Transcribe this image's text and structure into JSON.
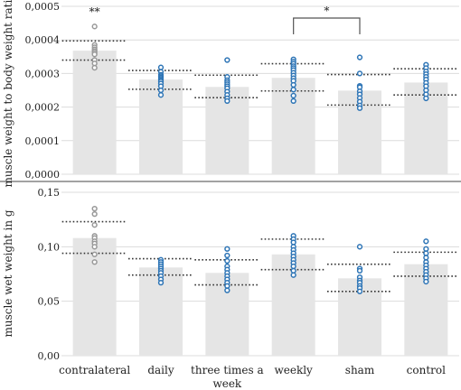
{
  "chart_data": [
    {
      "type": "bar",
      "ylabel": "muscle weight to body weight ratio",
      "ylim": [
        0,
        0.0005
      ],
      "yticks": [
        "0,0000",
        "0,0001",
        "0,0002",
        "0,0003",
        "0,0004",
        "0,0005"
      ],
      "grid": true,
      "categories": [
        "contralateral",
        "daily",
        "three times a week",
        "weekly",
        "sham",
        "control"
      ],
      "values": [
        0.000368,
        0.000282,
        0.00026,
        0.000287,
        0.000249,
        0.000273
      ],
      "sd_upper": [
        0.000397,
        0.000309,
        0.000295,
        0.000329,
        0.000297,
        0.000314
      ],
      "sd_lower": [
        0.00034,
        0.000253,
        0.000228,
        0.000248,
        0.000206,
        0.000236
      ],
      "points": [
        [
          0.00044,
          0.000385,
          0.000378,
          0.000372,
          0.000367,
          0.000362,
          0.000357,
          0.00034,
          0.00033,
          0.000317
        ],
        [
          0.000318,
          0.000305,
          0.000296,
          0.000292,
          0.000288,
          0.000284,
          0.00028,
          0.000276,
          0.00027,
          0.000262,
          0.00025,
          0.000236
        ],
        [
          0.00034,
          0.00029,
          0.00028,
          0.000274,
          0.000268,
          0.000262,
          0.000256,
          0.000246,
          0.000236,
          0.000226,
          0.000218
        ],
        [
          0.000342,
          0.000335,
          0.000329,
          0.000322,
          0.000316,
          0.00031,
          0.000302,
          0.000294,
          0.000286,
          0.000278,
          0.000266,
          0.000252,
          0.000234,
          0.000218
        ],
        [
          0.000348,
          0.0003,
          0.000263,
          0.000259,
          0.000247,
          0.000238,
          0.000227,
          0.000216,
          0.000205,
          0.000197
        ],
        [
          0.000326,
          0.000316,
          0.000306,
          0.000298,
          0.00029,
          0.000282,
          0.000272,
          0.000262,
          0.00025,
          0.000238,
          0.000226
        ]
      ],
      "point_colors": [
        "#999999",
        "#2e75b6",
        "#2e75b6",
        "#2e75b6",
        "#2e75b6",
        "#2e75b6"
      ],
      "annotations": [
        {
          "text": "**",
          "category": "contralateral"
        },
        {
          "text": "*",
          "bracket": [
            "weekly",
            "sham"
          ]
        }
      ]
    },
    {
      "type": "bar",
      "ylabel": "muscle wet weight in g",
      "ylim": [
        0,
        0.15
      ],
      "yticks": [
        "0,00",
        "0,05",
        "0,10",
        "0,15"
      ],
      "grid": true,
      "categories": [
        "contralateral",
        "daily",
        "three times a week",
        "weekly",
        "sham",
        "control"
      ],
      "values": [
        0.108,
        0.081,
        0.076,
        0.093,
        0.071,
        0.084
      ],
      "sd_upper": [
        0.123,
        0.089,
        0.088,
        0.107,
        0.084,
        0.095
      ],
      "sd_lower": [
        0.094,
        0.074,
        0.065,
        0.079,
        0.059,
        0.073
      ],
      "points": [
        [
          0.135,
          0.13,
          0.12,
          0.11,
          0.108,
          0.105,
          0.103,
          0.1,
          0.093,
          0.086
        ],
        [
          0.088,
          0.086,
          0.084,
          0.082,
          0.08,
          0.078,
          0.076,
          0.073,
          0.07,
          0.067
        ],
        [
          0.098,
          0.092,
          0.087,
          0.082,
          0.079,
          0.076,
          0.073,
          0.07,
          0.067,
          0.064,
          0.06
        ],
        [
          0.11,
          0.107,
          0.104,
          0.1,
          0.097,
          0.094,
          0.091,
          0.088,
          0.085,
          0.082,
          0.078,
          0.074
        ],
        [
          0.1,
          0.08,
          0.078,
          0.072,
          0.069,
          0.067,
          0.064,
          0.062,
          0.059
        ],
        [
          0.105,
          0.098,
          0.094,
          0.09,
          0.086,
          0.083,
          0.08,
          0.077,
          0.074,
          0.071,
          0.068
        ]
      ],
      "point_colors": [
        "#999999",
        "#2e75b6",
        "#2e75b6",
        "#2e75b6",
        "#2e75b6",
        "#2e75b6"
      ],
      "xtick_labels": [
        "contralateral",
        "daily",
        "three times a\nweek",
        "weekly",
        "sham",
        "control"
      ]
    }
  ]
}
